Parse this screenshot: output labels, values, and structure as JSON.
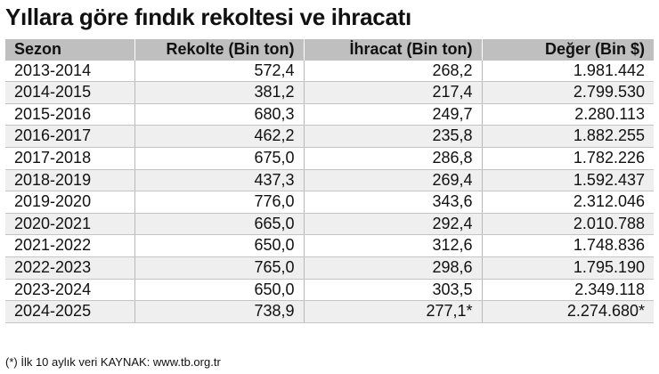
{
  "title": "Yıllara göre fındık rekoltesi ve ihracatı",
  "table": {
    "headers": [
      "Sezon",
      "Rekolte (Bin ton)",
      "İhracat (Bin ton)",
      "Değer (Bin $)"
    ],
    "rows": [
      [
        "2013-2014",
        "572,4",
        "268,2",
        "1.981.442"
      ],
      [
        "2014-2015",
        "381,2",
        "217,4",
        "2.799.530"
      ],
      [
        "2015-2016",
        "680,3",
        "249,7",
        "2.280.113"
      ],
      [
        "2016-2017",
        "462,2",
        "235,8",
        "1.882.255"
      ],
      [
        "2017-2018",
        "675,0",
        "286,8",
        "1.782.226"
      ],
      [
        "2018-2019",
        "437,3",
        "269,4",
        "1.592.437"
      ],
      [
        "2019-2020",
        "776,0",
        "343,6",
        "2.312.046"
      ],
      [
        "2020-2021",
        "665,0",
        "292,4",
        "2.010.788"
      ],
      [
        "2021-2022",
        "650,0",
        "312,6",
        "1.748.836"
      ],
      [
        "2022-2023",
        "765,0",
        "298,6",
        "1.795.190"
      ],
      [
        "2023-2024",
        "650,0",
        "303,5",
        "2.349.118"
      ],
      [
        "2024-2025",
        "738,9",
        "277,1*",
        "2.274.680*"
      ]
    ]
  },
  "footnote": "(*) İlk 10 aylık veri KAYNAK: www.tb.org.tr"
}
